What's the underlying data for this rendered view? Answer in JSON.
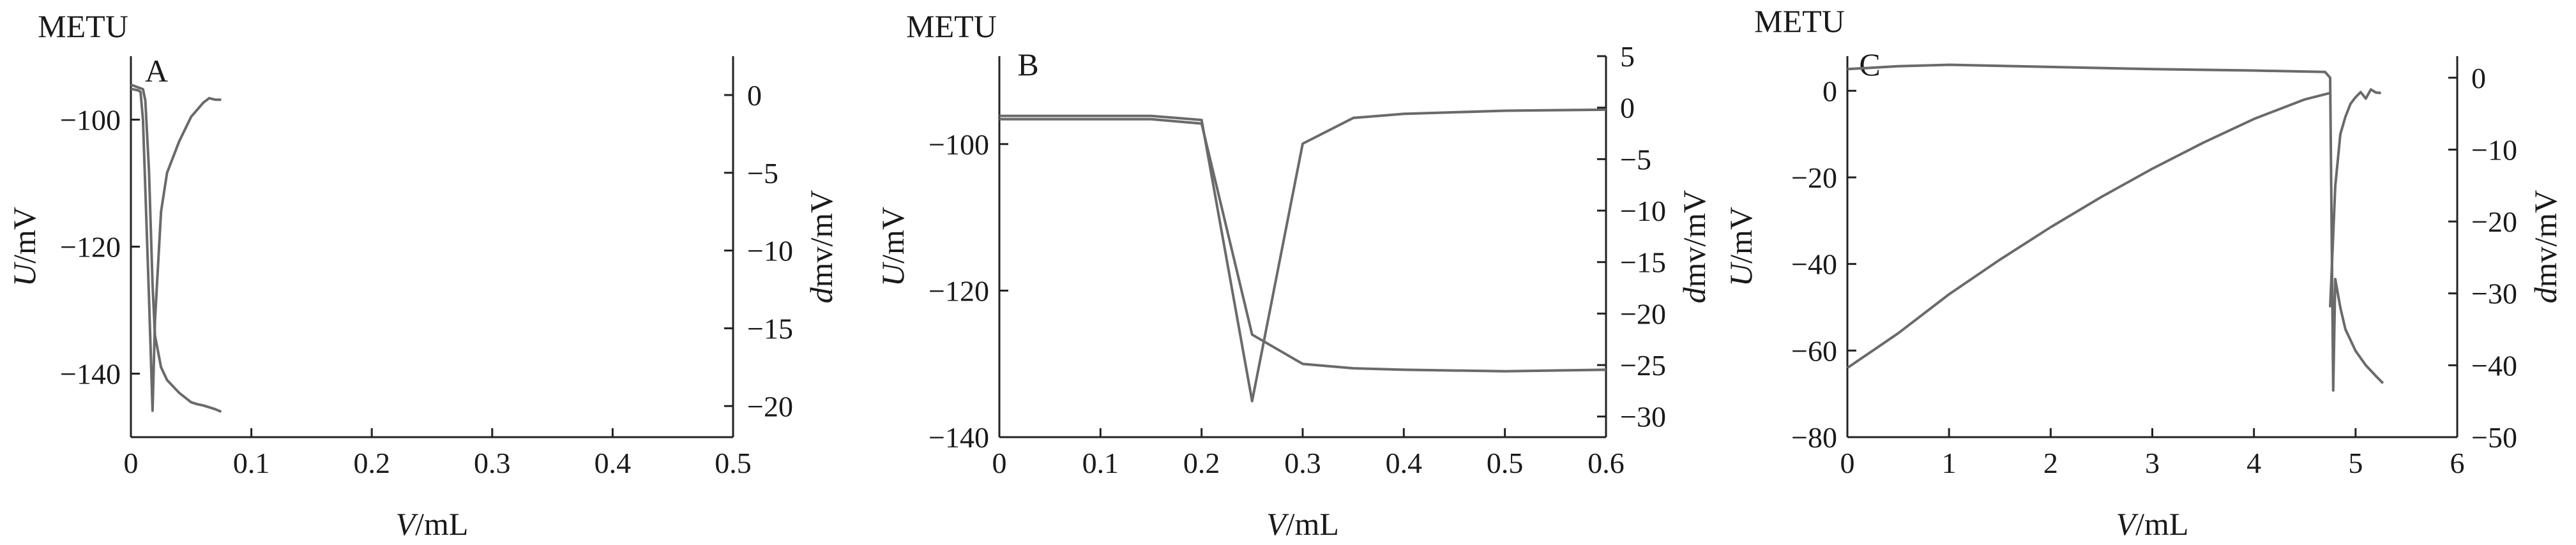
{
  "chart_data": [
    {
      "type": "line",
      "brand": "METU",
      "panel": "A",
      "xlabel": "V/mL",
      "ylabel": "U/mV",
      "y2label": "dmv/mV",
      "xlim": [
        0,
        0.5
      ],
      "ylim": [
        -150,
        -90
      ],
      "y2lim": [
        -22,
        2.5
      ],
      "x_ticks": [
        0,
        0.1,
        0.2,
        0.3,
        0.4,
        0.5
      ],
      "x_tick_labels": [
        "0",
        "0.1",
        "0.2",
        "0.3",
        "0.4",
        "0.5"
      ],
      "y_ticks": [
        -100,
        -120,
        -140
      ],
      "y_tick_labels": [
        "−100",
        "−120",
        "−140"
      ],
      "y2_ticks": [
        0,
        -5,
        -10,
        -15,
        -20
      ],
      "y2_tick_labels": [
        "0",
        "−5",
        "−10",
        "−15",
        "−20"
      ],
      "series": [
        {
          "axis": "y",
          "x": [
            0,
            0.01,
            0.012,
            0.015,
            0.018,
            0.02,
            0.025,
            0.03,
            0.04,
            0.05,
            0.055,
            0.06,
            0.065,
            0.07,
            0.075
          ],
          "y": [
            -94.5,
            -95.2,
            -97,
            -108,
            -126,
            -134,
            -139,
            -141,
            -143,
            -144.5,
            -144.8,
            -145,
            -145.3,
            -145.6,
            -146
          ]
        },
        {
          "axis": "y2",
          "x": [
            0,
            0.006,
            0.008,
            0.01,
            0.015,
            0.018,
            0.02,
            0.025,
            0.03,
            0.04,
            0.05,
            0.06,
            0.065,
            0.07,
            0.075
          ],
          "y": [
            0.4,
            0.3,
            0.2,
            -1.6,
            -13,
            -20.3,
            -14.5,
            -7.5,
            -5,
            -3,
            -1.4,
            -0.5,
            -0.2,
            -0.3,
            -0.3
          ]
        }
      ]
    },
    {
      "type": "line",
      "brand": "METU",
      "panel": "B",
      "xlabel": "V/mL",
      "ylabel": "U/mV",
      "y2label": "dmv/mV",
      "xlim": [
        0,
        0.6
      ],
      "ylim": [
        -140,
        -88
      ],
      "y2lim": [
        -32,
        5
      ],
      "x_ticks": [
        0,
        0.1,
        0.2,
        0.3,
        0.4,
        0.5,
        0.6
      ],
      "x_tick_labels": [
        "0",
        "0.1",
        "0.2",
        "0.3",
        "0.4",
        "0.5",
        "0.6"
      ],
      "y_ticks": [
        -100,
        -120,
        -140
      ],
      "y_tick_labels": [
        "−100",
        "−120",
        "−140"
      ],
      "y2_ticks": [
        5,
        0,
        -5,
        -10,
        -15,
        -20,
        -25,
        -30
      ],
      "y2_tick_labels": [
        "5",
        "0",
        "−5",
        "−10",
        "−15",
        "−20",
        "−25",
        "−30"
      ],
      "series": [
        {
          "axis": "y",
          "x": [
            0,
            0.15,
            0.2,
            0.25,
            0.3,
            0.35,
            0.4,
            0.5,
            0.6
          ],
          "y": [
            -96.6,
            -96.6,
            -97.2,
            -126,
            -130,
            -130.6,
            -130.8,
            -131,
            -130.8
          ]
        },
        {
          "axis": "y2",
          "x": [
            0,
            0.15,
            0.2,
            0.25,
            0.3,
            0.35,
            0.4,
            0.5,
            0.6
          ],
          "y": [
            -0.8,
            -0.8,
            -1.2,
            -28.5,
            -3.5,
            -1.0,
            -0.6,
            -0.3,
            -0.2
          ]
        }
      ]
    },
    {
      "type": "line",
      "brand": "METU",
      "panel": "C",
      "xlabel": "V/mL",
      "ylabel": "U/mV",
      "y2label": "dmv/mV",
      "xlim": [
        0,
        6
      ],
      "ylim": [
        -80,
        8
      ],
      "y2lim": [
        -50,
        3
      ],
      "x_ticks": [
        0,
        1,
        2,
        3,
        4,
        5,
        6
      ],
      "x_tick_labels": [
        "0",
        "1",
        "2",
        "3",
        "4",
        "5",
        "6"
      ],
      "y_ticks": [
        0,
        -20,
        -40,
        -60,
        -80
      ],
      "y_tick_labels": [
        "0",
        "−20",
        "−40",
        "−60",
        "−80"
      ],
      "y2_ticks": [
        0,
        -10,
        -20,
        -30,
        -40,
        -50
      ],
      "y2_tick_labels": [
        "0",
        "−10",
        "−20",
        "−30",
        "−40",
        "−50"
      ],
      "series": [
        {
          "axis": "y",
          "x": [
            0,
            0.5,
            1,
            1.5,
            2,
            2.5,
            3,
            3.5,
            4,
            4.5,
            4.75
          ],
          "y": [
            -64,
            -56,
            -47,
            -39,
            -31.5,
            -24.5,
            -18,
            -12,
            -6.5,
            -2,
            -0.5
          ]
        },
        {
          "axis": "y2",
          "x": [
            0,
            0.5,
            1,
            2,
            3,
            4,
            4.7,
            4.75,
            4.78,
            4.8,
            4.85,
            4.9,
            5.0,
            5.1,
            5.2,
            5.27
          ],
          "y": [
            1.2,
            1.6,
            1.8,
            1.5,
            1.2,
            1.0,
            0.8,
            0,
            -43.5,
            -28,
            -32,
            -35,
            -38,
            -40,
            -41.5,
            -42.5
          ]
        },
        {
          "axis": "y",
          "x": [
            4.75,
            4.8,
            4.85,
            4.9,
            4.95,
            5.0,
            5.05,
            5.1,
            5.15,
            5.2,
            5.25
          ],
          "y": [
            -50,
            -22,
            -10,
            -6,
            -3,
            -1.5,
            -0.3,
            -1.8,
            0.3,
            -0.4,
            -0.5
          ]
        }
      ]
    }
  ]
}
